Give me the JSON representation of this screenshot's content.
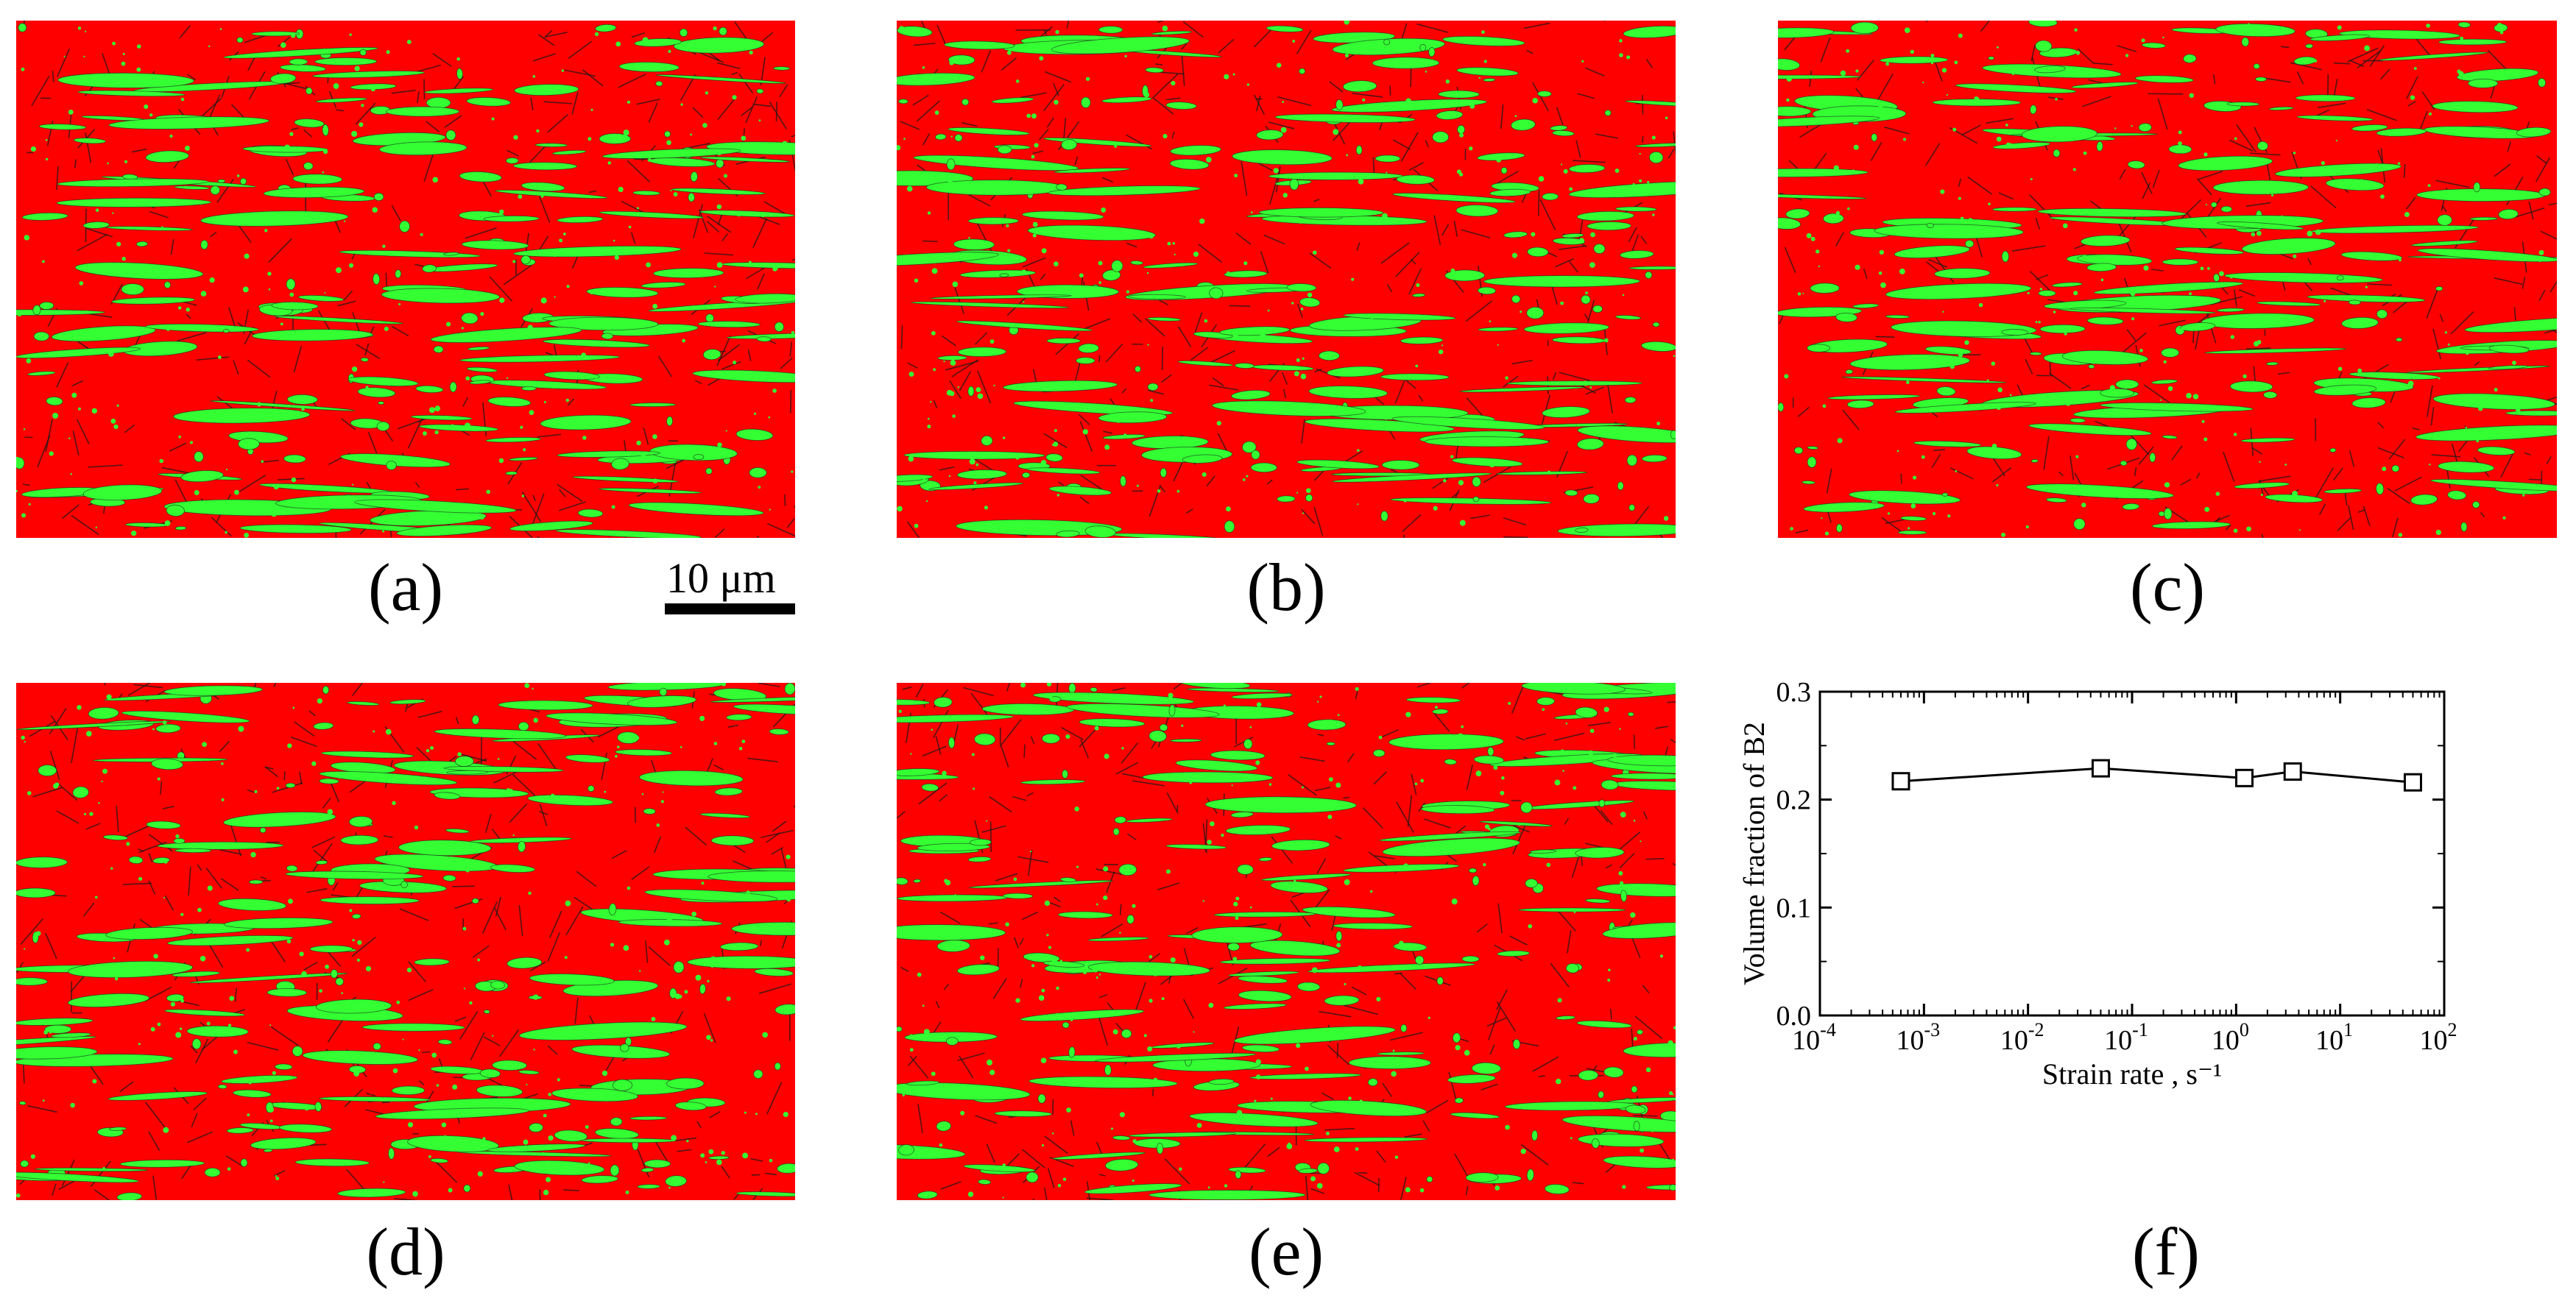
{
  "panels": [
    {
      "id": "a",
      "caption": "(a)"
    },
    {
      "id": "b",
      "caption": "(b)"
    },
    {
      "id": "c",
      "caption": "(c)"
    },
    {
      "id": "d",
      "caption": "(d)"
    },
    {
      "id": "e",
      "caption": "(e)"
    },
    {
      "id": "f",
      "caption": "(f)"
    }
  ],
  "scale_bar": {
    "label": "10 μm"
  },
  "colors": {
    "matrix_phase": "#ff0000",
    "b2_phase": "#33ff33",
    "boundary": "#1a1a1a"
  },
  "chart_data": {
    "type": "line",
    "xlabel": "Strain rate , s⁻¹",
    "ylabel": "Volume fraction of B2",
    "xscale": "log",
    "xlim": [
      0.0001,
      100
    ],
    "ylim": [
      0.0,
      0.3
    ],
    "xtick_labels": [
      {
        "base": "10",
        "exp": "-4"
      },
      {
        "base": "10",
        "exp": "-3"
      },
      {
        "base": "10",
        "exp": "-2"
      },
      {
        "base": "10",
        "exp": "-1"
      },
      {
        "base": "10",
        "exp": "0"
      },
      {
        "base": "10",
        "exp": "1"
      },
      {
        "base": "10",
        "exp": "2"
      }
    ],
    "ytick_labels": [
      "0.0",
      "0.1",
      "0.2",
      "0.3"
    ],
    "marker": "open-square",
    "grid": false,
    "series": [
      {
        "x": [
          0.0006,
          0.05,
          1.2,
          3.5,
          50
        ],
        "y": [
          0.217,
          0.229,
          0.22,
          0.226,
          0.216
        ]
      }
    ]
  }
}
